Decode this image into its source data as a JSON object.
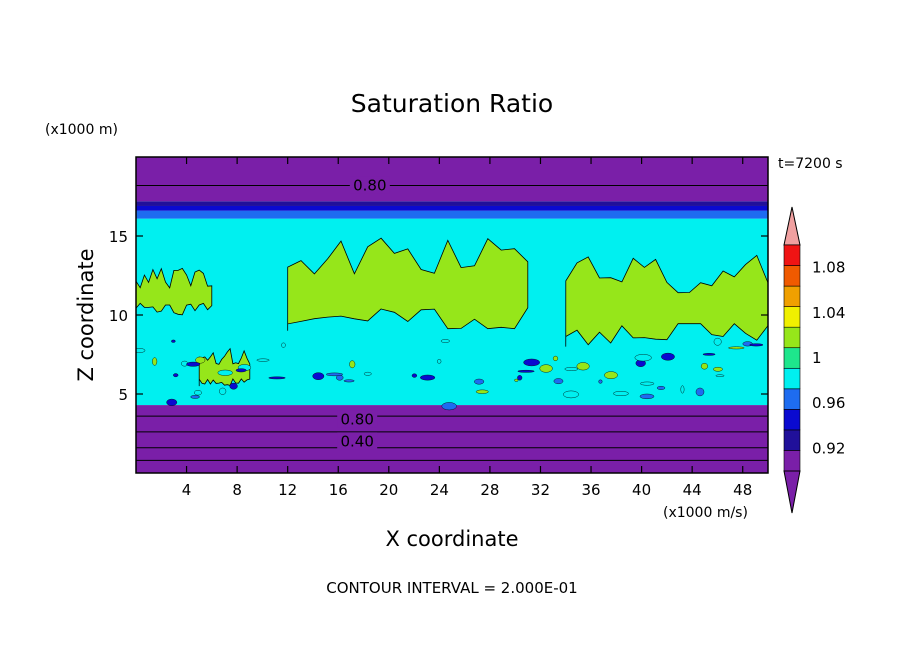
{
  "chart_data": {
    "type": "heatmap",
    "title": "Saturation Ratio",
    "xlabel": "X coordinate",
    "ylabel": "Z coordinate",
    "x_units": "(x1000 m/s)",
    "y_units": "(x1000 m)",
    "time_label": "t=7200 s",
    "footer": "CONTOUR INTERVAL = 2.000E-01",
    "xlim": [
      0,
      50
    ],
    "ylim": [
      0,
      20
    ],
    "xticks": [
      4,
      8,
      12,
      16,
      20,
      24,
      28,
      32,
      36,
      40,
      44,
      48
    ],
    "yticks": [
      5,
      10,
      15
    ],
    "contour_interval": 0.2,
    "contour_labels": [
      {
        "text": "0.80",
        "x": 18.5,
        "z": 18.2
      },
      {
        "text": "0.80",
        "x": 17.5,
        "z": 3.4
      },
      {
        "text": "0.40",
        "x": 17.5,
        "z": 2.0
      }
    ],
    "colorbar": {
      "tick_labels": [
        "1.08",
        "1.04",
        "1",
        "0.96",
        "0.92"
      ],
      "levels": [
        0.9,
        0.92,
        0.94,
        0.96,
        0.98,
        1.0,
        1.02,
        1.04,
        1.06,
        1.08,
        1.1
      ],
      "colors": [
        "#7a1fa8",
        "#20109a",
        "#0a0ad0",
        "#1e6cf0",
        "#00f0f0",
        "#1ee68c",
        "#96e61a",
        "#f0f000",
        "#f0a000",
        "#f05a00",
        "#f01414"
      ],
      "under_color": "#7a1fa8",
      "over_color": "#f0a0a0"
    },
    "layers": [
      {
        "z": [
          0,
          0.8
        ],
        "value": 0.3
      },
      {
        "z": [
          0.8,
          1.6
        ],
        "value": 0.5
      },
      {
        "z": [
          1.6,
          2.6
        ],
        "value": 0.7
      },
      {
        "z": [
          2.6,
          3.6
        ],
        "value": 0.85
      },
      {
        "z": [
          3.6,
          4.3
        ],
        "value": 0.91
      },
      {
        "z": [
          4.3,
          15.0
        ],
        "value": 0.99
      },
      {
        "z": [
          15.0,
          16.1
        ],
        "value": 0.99
      },
      {
        "z": [
          16.1,
          16.6
        ],
        "value": 0.97
      },
      {
        "z": [
          16.6,
          16.9
        ],
        "value": 0.95
      },
      {
        "z": [
          16.9,
          17.2
        ],
        "value": 0.93
      },
      {
        "z": [
          17.2,
          20
        ],
        "value": 0.82
      }
    ],
    "regions_1p00_plus": [
      {
        "name": "upper-central",
        "approx_x": [
          12,
          31
        ],
        "approx_z": [
          9,
          15
        ]
      },
      {
        "name": "upper-right",
        "approx_x": [
          34,
          50
        ],
        "approx_z": [
          8,
          14
        ]
      },
      {
        "name": "upper-left",
        "approx_x": [
          0,
          6
        ],
        "approx_z": [
          10,
          13
        ]
      },
      {
        "name": "mid-left",
        "approx_x": [
          5,
          9
        ],
        "approx_z": [
          5.5,
          8
        ]
      }
    ],
    "grid": false
  }
}
